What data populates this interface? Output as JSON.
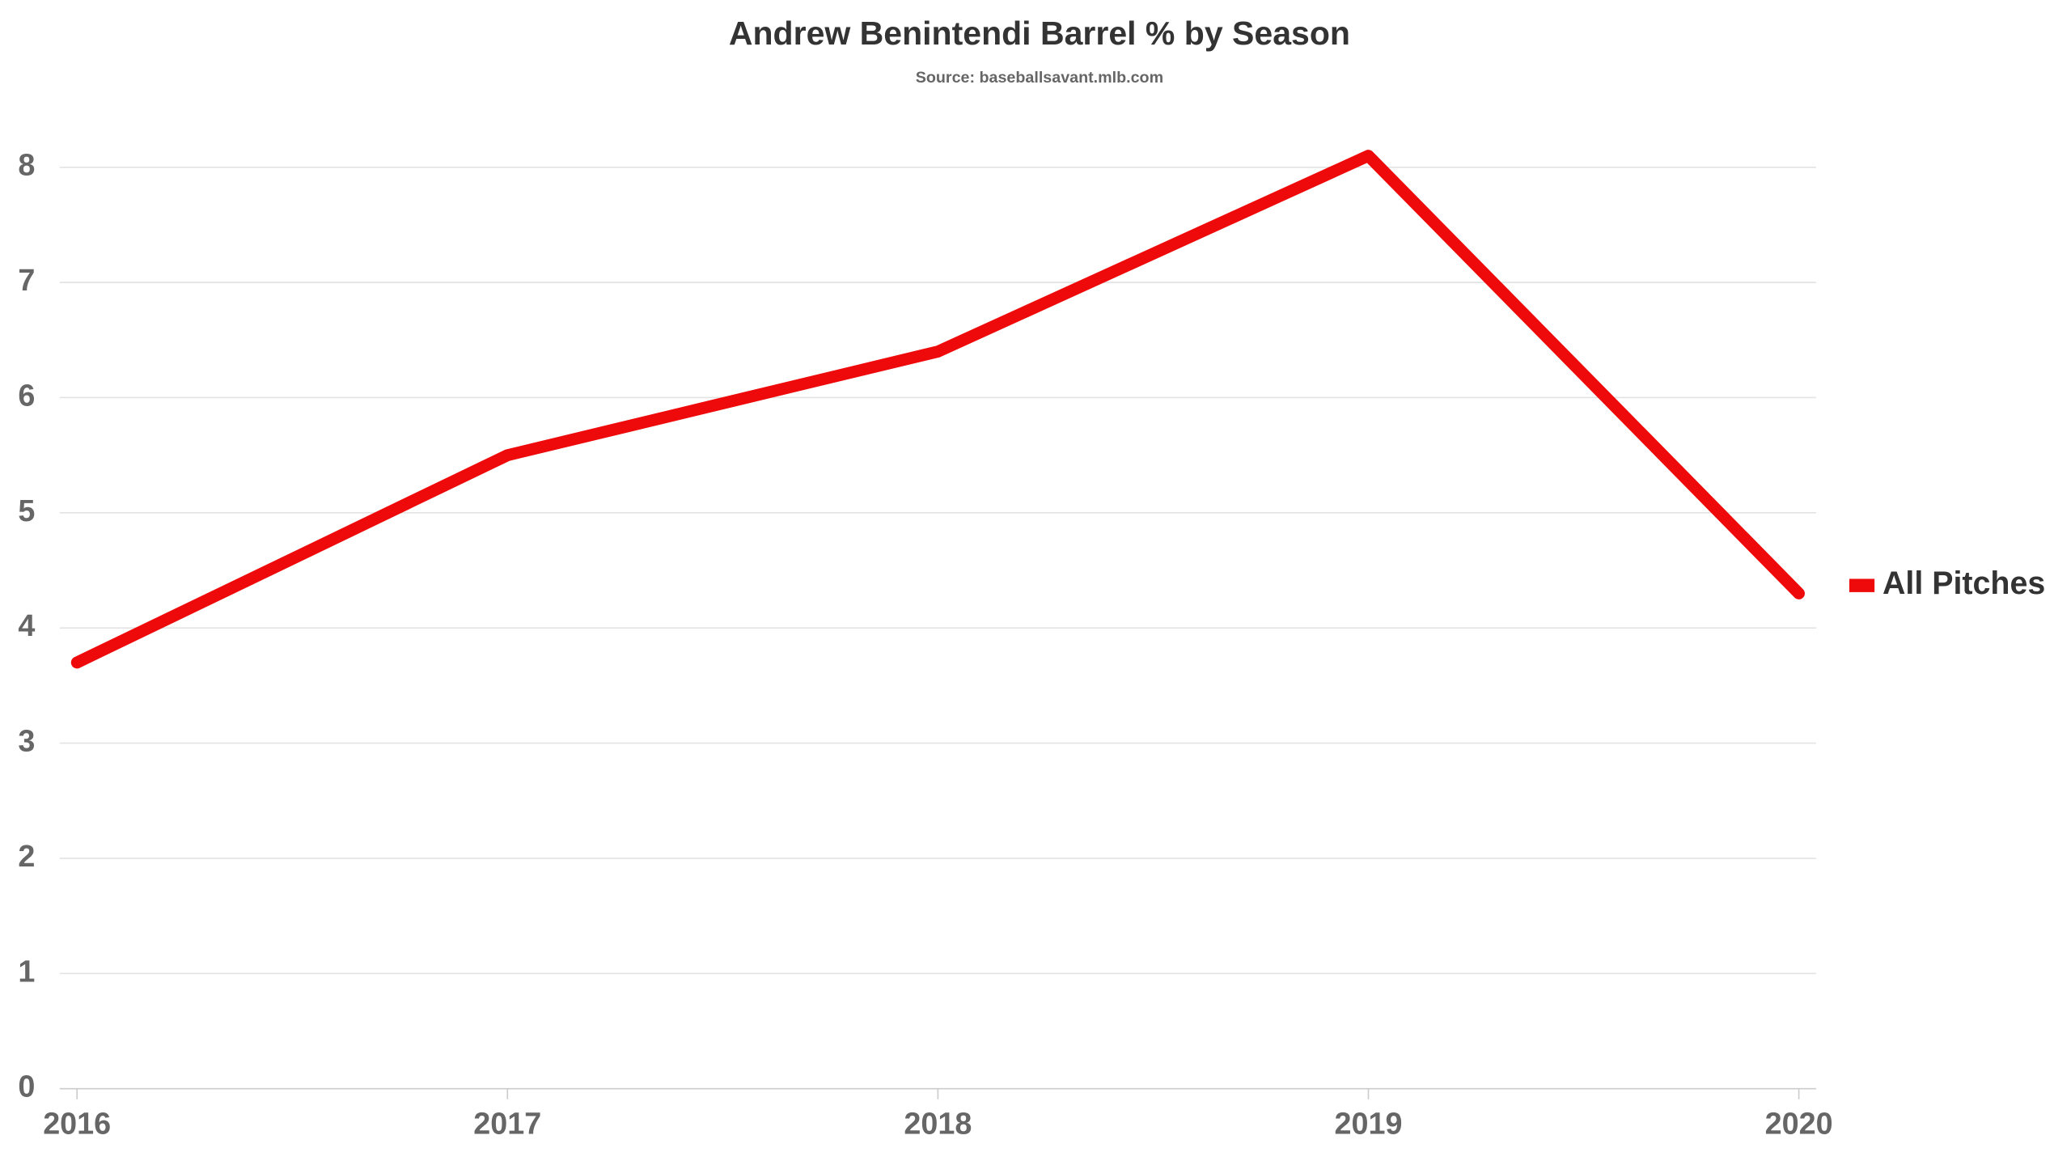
{
  "chart_data": {
    "type": "line",
    "title": "Andrew Benintendi Barrel % by Season",
    "subtitle": "Source: baseballsavant.mlb.com",
    "categories": [
      "2016",
      "2017",
      "2018",
      "2019",
      "2020"
    ],
    "series": [
      {
        "name": "All Pitches",
        "color": "#ee0a0a",
        "values": [
          3.7,
          5.5,
          6.4,
          8.1,
          4.3
        ]
      }
    ],
    "ylim": [
      0,
      8
    ],
    "yticks": [
      0,
      1,
      2,
      3,
      4,
      5,
      6,
      7,
      8
    ],
    "grid": true,
    "legend": "right"
  }
}
